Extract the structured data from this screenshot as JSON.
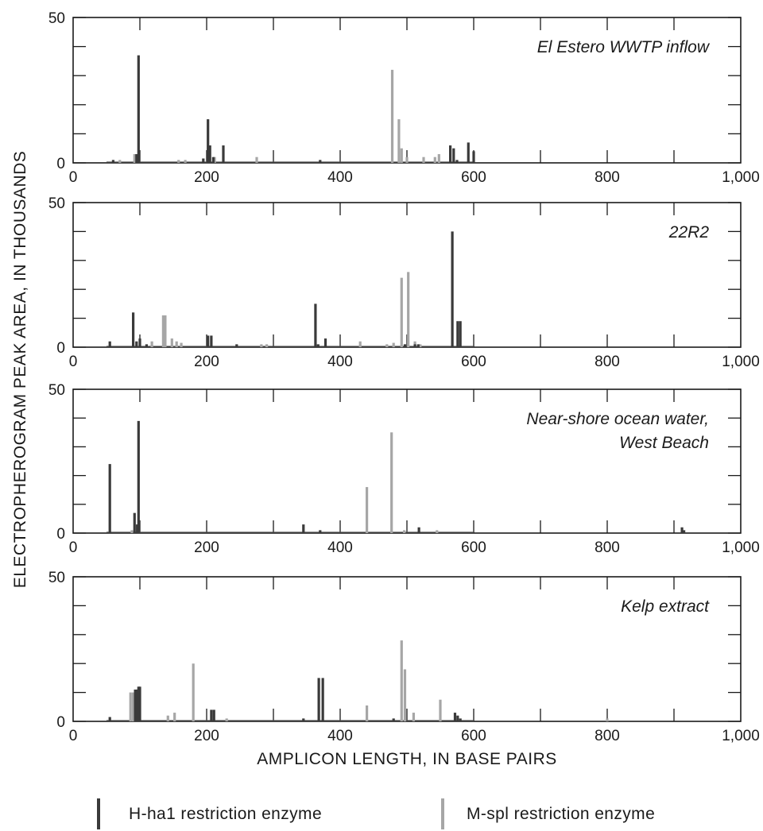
{
  "chart_data": {
    "type": "bar",
    "xlabel": "AMPLICON LENGTH, IN BASE PAIRS",
    "ylabel": "ELECTROPHEROGRAM PEAK AREA, IN THOUSANDS",
    "xlim": [
      0,
      1000
    ],
    "ylim": [
      0,
      50
    ],
    "x_ticks": [
      0,
      200,
      400,
      600,
      800,
      1000
    ],
    "x_tick_labels": [
      "0",
      "200",
      "400",
      "600",
      "800",
      "1,000"
    ],
    "y_tick_labels": [
      "0",
      "50"
    ],
    "colors": {
      "H-ha1": "#3a3a3a",
      "M-spl": "#a6a6a6"
    },
    "legend": [
      {
        "key": "H-ha1",
        "label": "H-ha1 restriction  enzyme"
      },
      {
        "key": "M-spl",
        "label": "M-spl restriction enzyme"
      }
    ],
    "panels": [
      {
        "title_lines": [
          "El Estero WWTP inflow"
        ],
        "series": [
          {
            "name": "H-ha1 restriction  enzyme",
            "key": "H-ha1",
            "x": [
              60,
              95,
              98,
              195,
              202,
              205,
              210,
              225,
              370,
              565,
              570,
              575,
              592,
              600
            ],
            "y": [
              1,
              3,
              37,
              1.5,
              15,
              6,
              2,
              6,
              1,
              6,
              5,
              1,
              7,
              4
            ]
          },
          {
            "name": "M-spl restriction enzyme",
            "key": "M-spl",
            "x": [
              70,
              92,
              158,
              168,
              212,
              275,
              478,
              488,
              492,
              500,
              525,
              542,
              548
            ],
            "y": [
              1,
              3,
              1,
              1,
              2,
              2,
              32,
              15,
              5,
              2,
              2,
              2,
              3
            ]
          }
        ]
      },
      {
        "title_lines": [
          "22R2"
        ],
        "series": [
          {
            "name": "H-ha1 restriction  enzyme",
            "key": "H-ha1",
            "x": [
              55,
              90,
              95,
              100,
              110,
              202,
              207,
              245,
              363,
              367,
              378,
              497,
              512,
              517,
              568,
              576,
              580
            ],
            "y": [
              2,
              12,
              2,
              3,
              1,
              4,
              4,
              1,
              15,
              1,
              3,
              1,
              1,
              1,
              40,
              9,
              9
            ]
          },
          {
            "name": "M-spl restriction enzyme",
            "key": "M-spl",
            "x": [
              118,
              135,
              138,
              148,
              155,
              162,
              282,
              290,
              430,
              470,
              480,
              492,
              502,
              512,
              520
            ],
            "y": [
              2,
              11,
              11,
              3,
              2,
              1.5,
              1,
              1,
              2,
              1,
              1.5,
              24,
              26,
              2,
              1
            ]
          }
        ]
      },
      {
        "title_lines": [
          "Near-shore ocean water,",
          "West Beach"
        ],
        "series": [
          {
            "name": "H-ha1 restriction  enzyme",
            "key": "H-ha1",
            "x": [
              55,
              92,
              96,
              98,
              345,
              370,
              518,
              912,
              915
            ],
            "y": [
              24,
              7,
              3,
              39,
              3,
              1,
              2,
              2,
              1
            ]
          },
          {
            "name": "M-spl restriction enzyme",
            "key": "M-spl",
            "x": [
              88,
              440,
              477,
              496,
              545
            ],
            "y": [
              1,
              16,
              35,
              1,
              1
            ]
          }
        ]
      },
      {
        "title_lines": [
          "Kelp extract"
        ],
        "series": [
          {
            "name": "H-ha1 restriction  enzyme",
            "key": "H-ha1",
            "x": [
              55,
              93,
              96,
              98,
              100,
              207,
              211,
              345,
              368,
              374,
              480,
              572,
              576,
              580
            ],
            "y": [
              1.5,
              11,
              11,
              12,
              12,
              4,
              4,
              1,
              15,
              15,
              1,
              3,
              2,
              1
            ]
          },
          {
            "name": "M-spl restriction enzyme",
            "key": "M-spl",
            "x": [
              86,
              90,
              142,
              152,
              180,
              230,
              440,
              492,
              497,
              510,
              550,
              800
            ],
            "y": [
              10,
              10,
              2,
              3,
              20,
              1,
              5.5,
              28,
              18,
              3,
              7.5,
              1
            ]
          }
        ]
      }
    ]
  }
}
